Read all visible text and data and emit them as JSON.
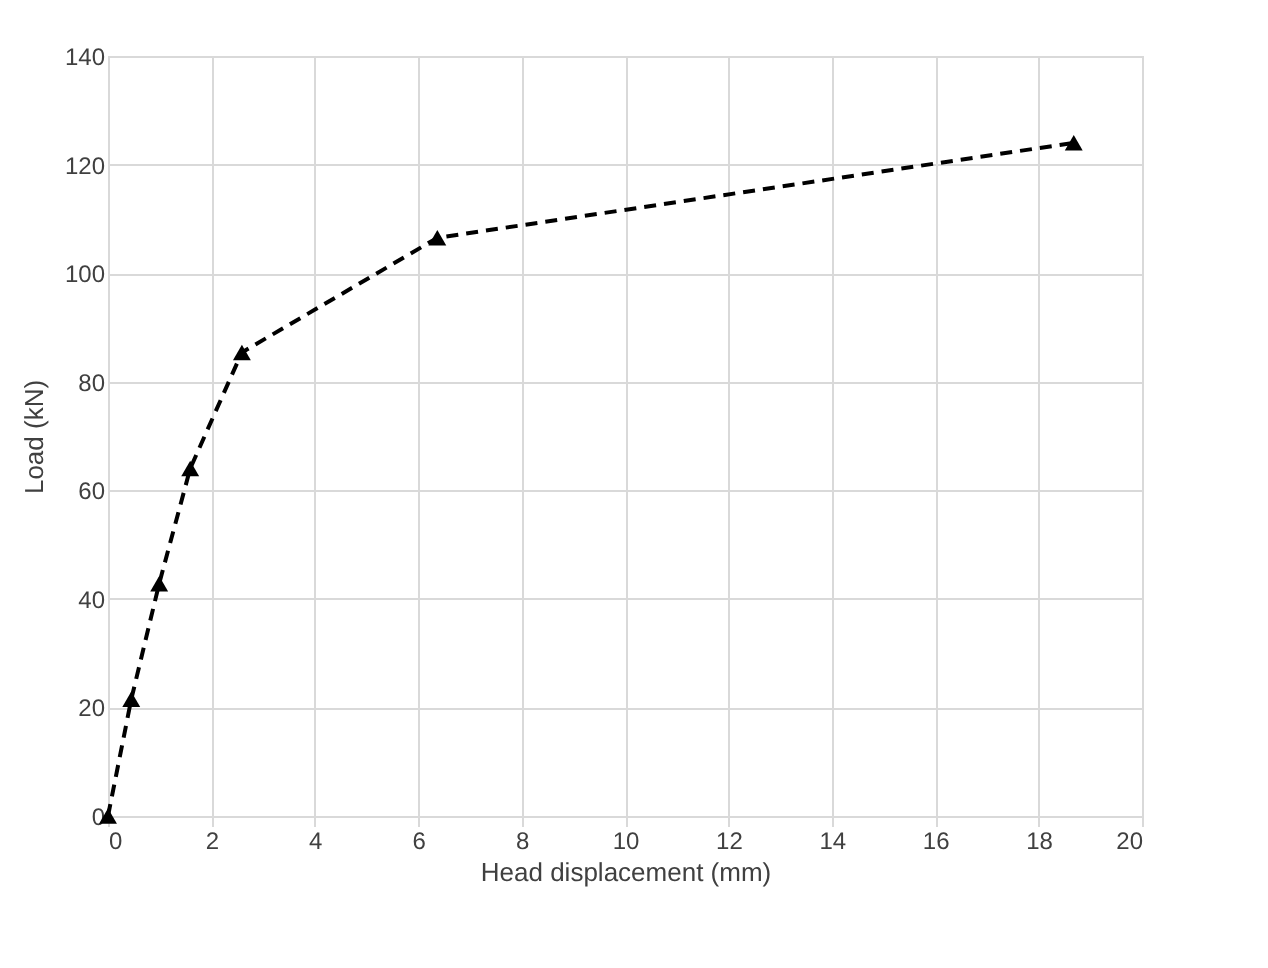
{
  "chart_data": {
    "type": "line",
    "xlabel": "Head displacement (mm)",
    "ylabel": "Load (kN)",
    "x": [
      0,
      0.45,
      0.99,
      1.59,
      2.59,
      6.37,
      18.68
    ],
    "series": [
      {
        "color": "#000000",
        "values": [
          0,
          21.5,
          42.8,
          64,
          85.4,
          106.5,
          124
        ]
      }
    ],
    "xlim": [
      0,
      20
    ],
    "xticks": [
      0,
      2,
      4,
      6,
      8,
      10,
      12,
      14,
      16,
      18,
      20
    ],
    "ylim": [
      0,
      140
    ],
    "yticks": [
      0,
      20,
      40,
      60,
      80,
      100,
      120,
      140
    ],
    "grid": true,
    "marker": "triangle",
    "line_style": "dashed"
  }
}
